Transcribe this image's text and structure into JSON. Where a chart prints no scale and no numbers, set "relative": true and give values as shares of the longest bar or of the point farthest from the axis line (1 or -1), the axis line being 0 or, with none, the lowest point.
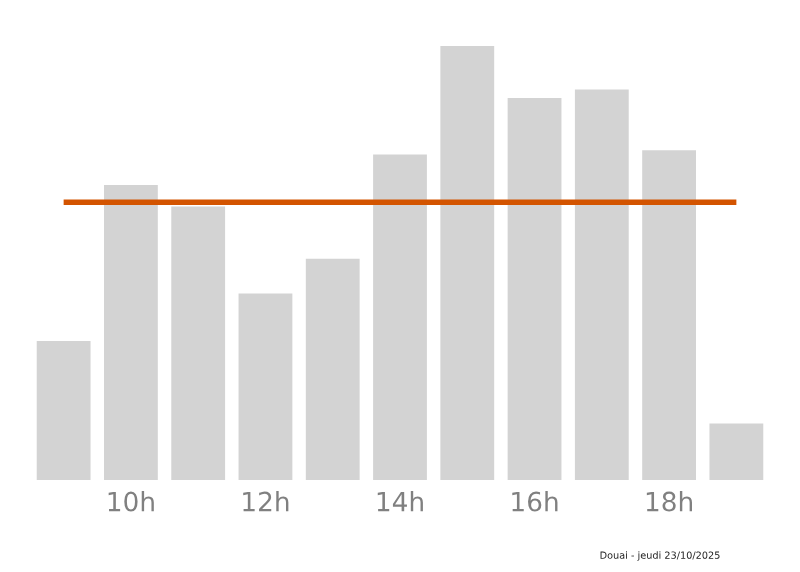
{
  "chart_data": {
    "type": "bar",
    "relative": true,
    "categories": [
      null,
      "10h",
      null,
      "12h",
      null,
      "14h",
      null,
      "16h",
      null,
      "18h",
      null
    ],
    "values": [
      0.32,
      0.68,
      0.63,
      0.43,
      0.51,
      0.75,
      1,
      0.88,
      0.9,
      0.76,
      0.13
    ],
    "color": "#d3d3d3",
    "ref_lines": [
      {
        "axis": "y",
        "value": 0.64,
        "color": "#d35400"
      }
    ],
    "grid": false,
    "legend": false,
    "annotations": [
      "Douai - jeudi 23/10/2025"
    ]
  }
}
